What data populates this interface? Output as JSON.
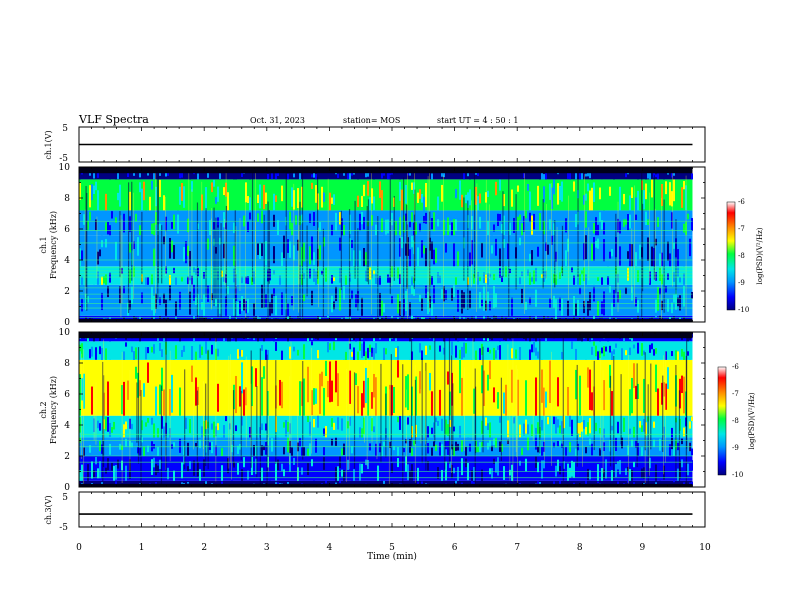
{
  "header": {
    "title": "VLF Spectra",
    "date": "Oct. 31, 2023",
    "station": "station= MOS",
    "start": "start UT =  4 : 50 : 1"
  },
  "colors": {
    "spectrum": [
      "#000080",
      "#0000ff",
      "#0096ff",
      "#00e6e6",
      "#00ff40",
      "#ffff00",
      "#ff9000",
      "#ff0000",
      "#ffffff"
    ],
    "trace": "#000000"
  },
  "chart_data": [
    {
      "type": "line",
      "panel": "ch1-voltage",
      "ylabel": "ch.1(V)",
      "ylim": [
        -5,
        5
      ],
      "yticks": [
        "5",
        "-5"
      ],
      "xlim": [
        0,
        10
      ],
      "series": [
        {
          "x": [
            0,
            9.8
          ],
          "values": [
            0,
            0
          ]
        }
      ]
    },
    {
      "type": "heatmap",
      "panel": "ch1-spectrogram",
      "ylabel": [
        "ch.1",
        "Frequency (kHz)"
      ],
      "ylim": [
        0,
        10
      ],
      "yticks": [
        "0",
        "2",
        "4",
        "6",
        "8",
        "10"
      ],
      "xlim": [
        0,
        10
      ],
      "data_xmax": 9.8,
      "colorbar": {
        "label": "log(PSD)(V²/Hz)",
        "ticks": [
          "-6",
          "-7",
          "-8",
          "-9",
          "-10"
        ],
        "range": [
          -10,
          -6
        ]
      },
      "bands": [
        {
          "f": [
            0.0,
            0.4
          ],
          "level": -9.6
        },
        {
          "f": [
            0.4,
            2.4
          ],
          "level": -9.1
        },
        {
          "f": [
            2.4,
            3.6
          ],
          "level": -8.4
        },
        {
          "f": [
            3.6,
            5.6
          ],
          "level": -9.0
        },
        {
          "f": [
            5.6,
            7.2
          ],
          "level": -8.6
        },
        {
          "f": [
            7.2,
            9.2
          ],
          "level": -7.6
        },
        {
          "f": [
            9.2,
            10.0
          ],
          "level": -9.8
        }
      ],
      "lines_khz": [
        0.3,
        0.9,
        1.2,
        1.5,
        1.8,
        2.2,
        2.9,
        3.1,
        3.3,
        3.5,
        4.0,
        5.1,
        5.9,
        6.5
      ]
    },
    {
      "type": "heatmap",
      "panel": "ch2-spectrogram",
      "ylabel": [
        "ch.2",
        "Frequency (kHz)"
      ],
      "ylim": [
        0,
        10
      ],
      "yticks": [
        "0",
        "2",
        "4",
        "6",
        "8",
        "10"
      ],
      "xlim": [
        0,
        10
      ],
      "data_xmax": 9.8,
      "colorbar": {
        "label": "log(PSD)(V²/Hz)",
        "ticks": [
          "-6",
          "-7",
          "-8",
          "-9",
          "-10"
        ],
        "range": [
          -10,
          -6
        ]
      },
      "bands": [
        {
          "f": [
            0.0,
            0.4
          ],
          "level": -9.8
        },
        {
          "f": [
            0.4,
            2.0
          ],
          "level": -9.2
        },
        {
          "f": [
            2.0,
            3.2
          ],
          "level": -8.8
        },
        {
          "f": [
            3.2,
            4.6
          ],
          "level": -8.2
        },
        {
          "f": [
            4.6,
            8.2
          ],
          "level": -7.0
        },
        {
          "f": [
            8.2,
            9.4
          ],
          "level": -8.4
        },
        {
          "f": [
            9.4,
            10.0
          ],
          "level": -9.6
        }
      ],
      "lines_khz": [
        0.6,
        1.0,
        1.6,
        2.0,
        2.6,
        3.0,
        3.4
      ]
    },
    {
      "type": "line",
      "panel": "ch3-voltage",
      "ylabel": "ch.3(V)",
      "ylim": [
        -5,
        5
      ],
      "yticks": [
        "5",
        "-5"
      ],
      "xlim": [
        0,
        10
      ],
      "series": [
        {
          "x": [
            0,
            9.8
          ],
          "values": [
            -1.3,
            -1.3
          ]
        }
      ]
    }
  ],
  "xaxis": {
    "label": "Time  (min)",
    "ticks": [
      "0",
      "1",
      "2",
      "3",
      "4",
      "5",
      "6",
      "7",
      "8",
      "9",
      "10"
    ]
  }
}
